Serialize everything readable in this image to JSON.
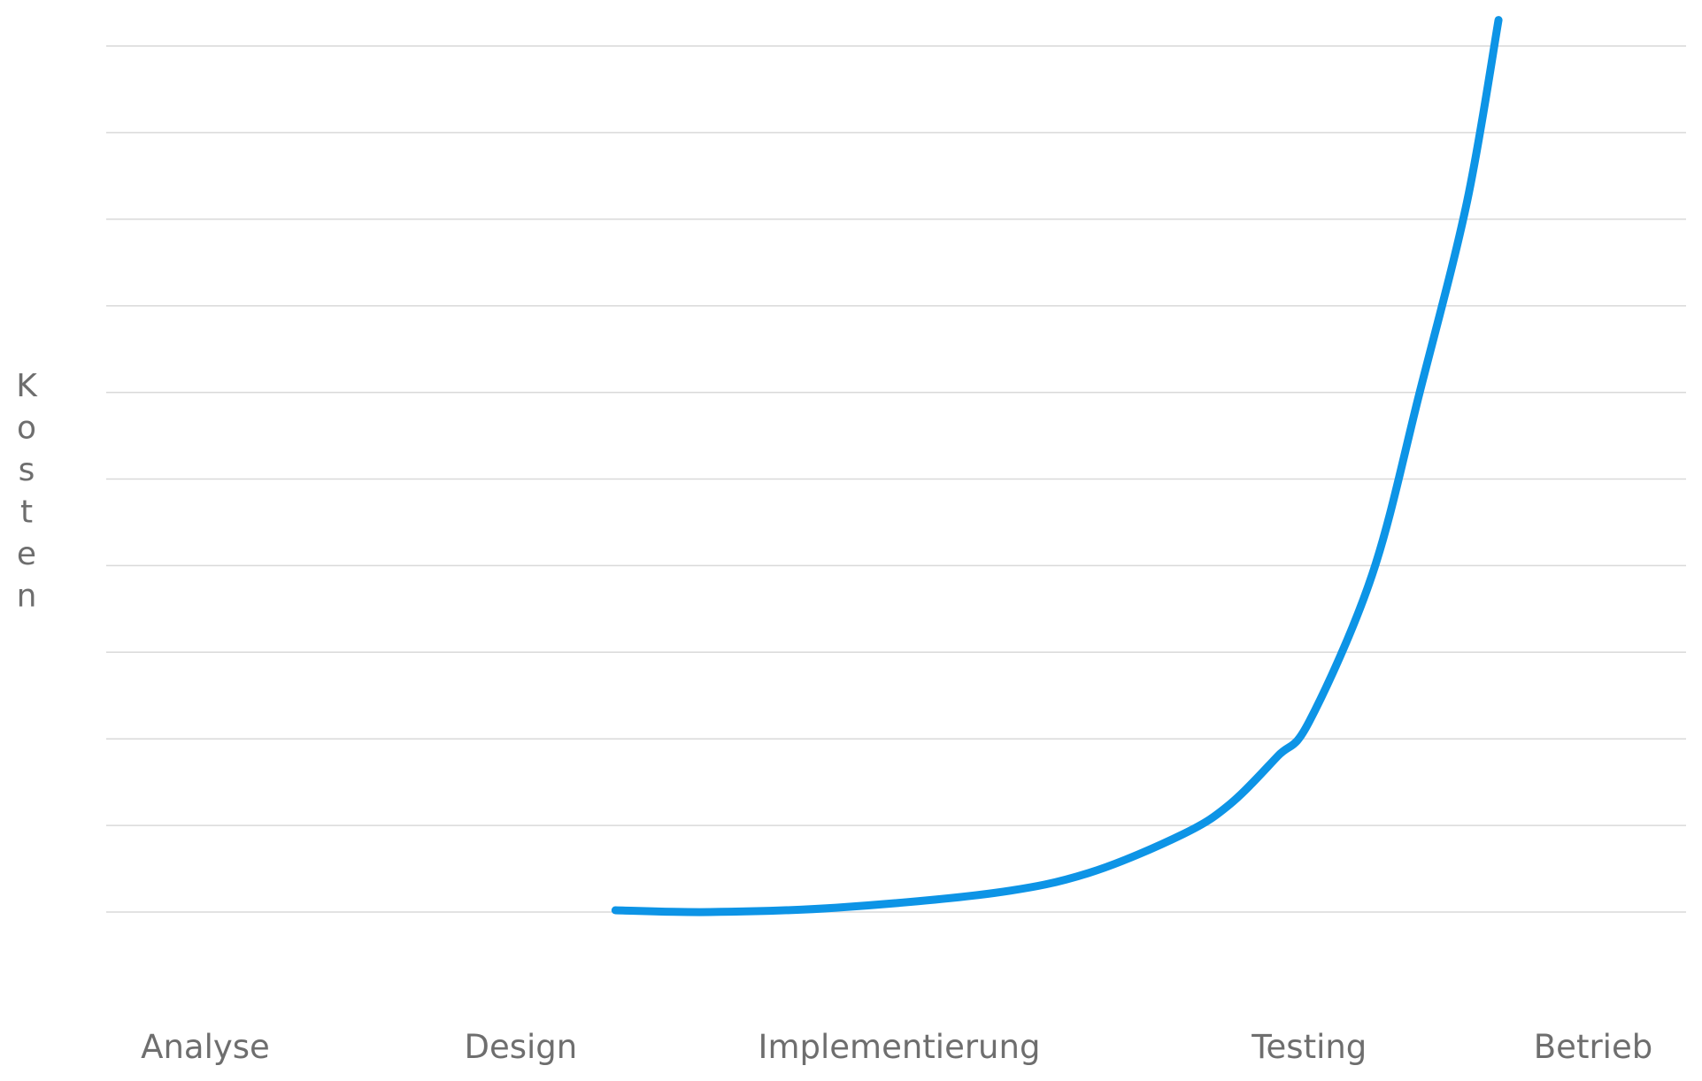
{
  "chart_data": {
    "type": "line",
    "title": "",
    "xlabel": "",
    "ylabel": "Kosten",
    "categories": [
      "Analyse",
      "Design",
      "Implementierung",
      "Testing",
      "Betrieb"
    ],
    "x_positions": [
      0,
      1,
      2.2,
      3.5,
      4.4
    ],
    "ylim": [
      0,
      10
    ],
    "y_tick_labels_shown": false,
    "grid": true,
    "gridlines_at": [
      0,
      1,
      2,
      3,
      4,
      5,
      6,
      7,
      8,
      9,
      10
    ],
    "legend": "none",
    "series": [
      {
        "color": "#0d94e6",
        "points": [
          [
            1.3,
            0.02
          ],
          [
            1.6,
            0.0
          ],
          [
            2.0,
            0.05
          ],
          [
            2.5,
            0.22
          ],
          [
            2.8,
            0.45
          ],
          [
            3.1,
            0.9
          ],
          [
            3.25,
            1.25
          ],
          [
            3.4,
            1.8
          ],
          [
            3.5,
            2.2
          ],
          [
            3.7,
            3.9
          ],
          [
            3.85,
            6.0
          ],
          [
            4.0,
            8.2
          ],
          [
            4.1,
            10.3
          ]
        ]
      }
    ]
  }
}
